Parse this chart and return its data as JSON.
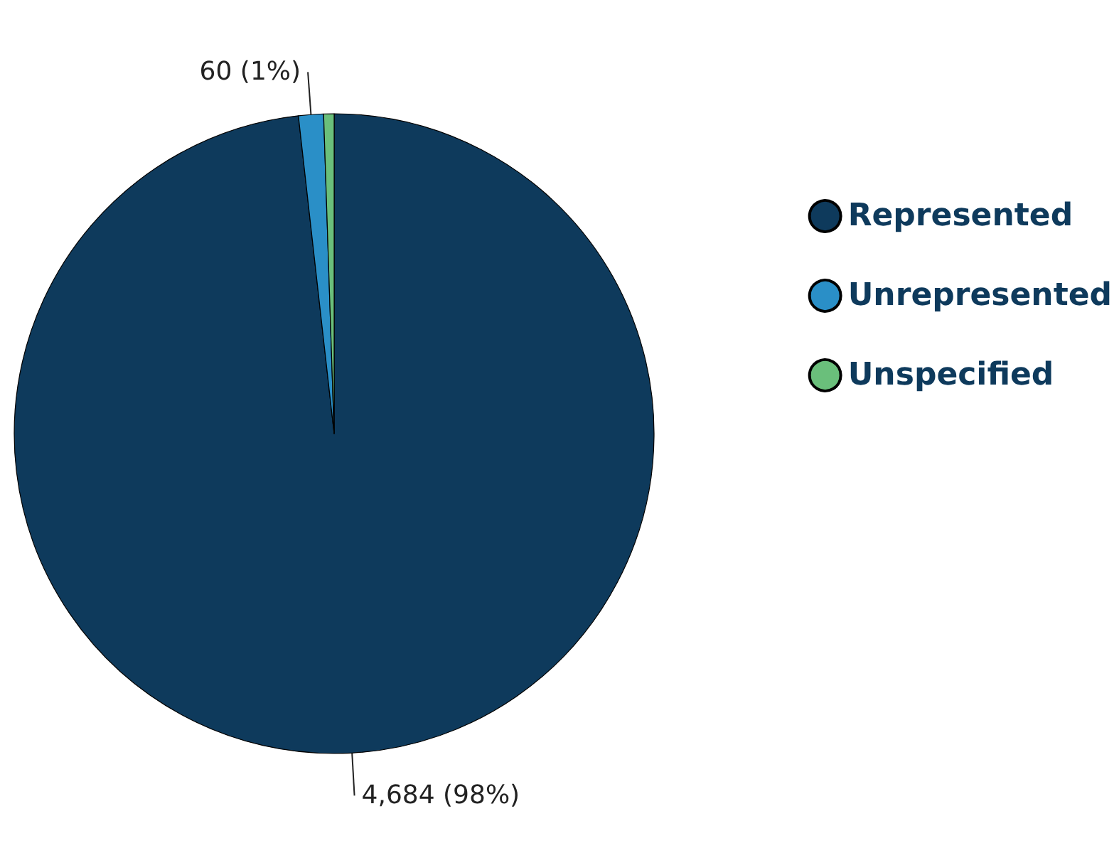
{
  "chart_data": {
    "type": "pie",
    "categories": [
      "Represented",
      "Unrepresented",
      "Unspecified"
    ],
    "values": [
      4684,
      60,
      25
    ],
    "colors": [
      "#0e3a5c",
      "#2a8fc7",
      "#6abf7b"
    ],
    "value_labels": [
      "4,684 (98%)",
      "60 (1%)",
      null
    ],
    "legend": "right"
  }
}
